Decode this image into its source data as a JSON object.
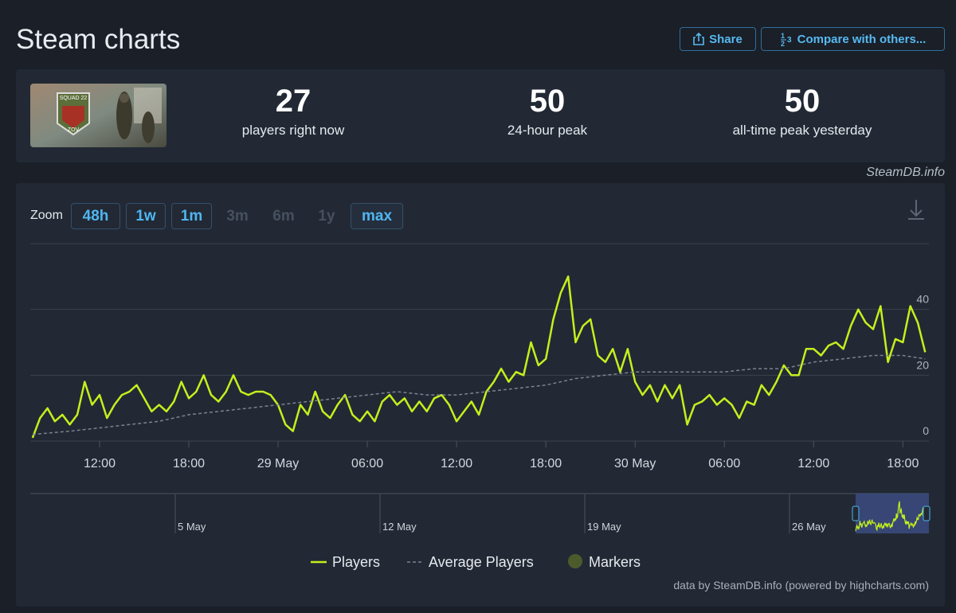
{
  "header": {
    "title": "Steam charts",
    "share": "Share",
    "compare": "Compare with others..."
  },
  "game_image": {
    "text": [
      "SQUAD 22",
      "ZOV"
    ]
  },
  "stats": [
    {
      "value": "27",
      "label": "players right now"
    },
    {
      "value": "50",
      "label": "24-hour peak"
    },
    {
      "value": "50",
      "label": "all-time peak yesterday"
    }
  ],
  "watermark": "SteamDB.info",
  "zoom": {
    "label": "Zoom",
    "buttons": [
      {
        "label": "48h",
        "enabled": true,
        "selected": false
      },
      {
        "label": "1w",
        "enabled": true,
        "selected": false
      },
      {
        "label": "1m",
        "enabled": true,
        "selected": false
      },
      {
        "label": "3m",
        "enabled": false,
        "selected": false
      },
      {
        "label": "6m",
        "enabled": false,
        "selected": false
      },
      {
        "label": "1y",
        "enabled": false,
        "selected": false
      },
      {
        "label": "max",
        "enabled": true,
        "selected": true
      }
    ]
  },
  "chart_data": {
    "type": "line",
    "x": [
      7.5,
      8,
      8.5,
      9,
      9.5,
      10,
      10.5,
      11,
      11.5,
      12,
      12.5,
      13,
      13.5,
      14,
      14.5,
      15,
      15.5,
      16,
      16.5,
      17,
      17.5,
      18,
      18.5,
      19,
      19.5,
      20,
      20.5,
      21,
      21.5,
      22,
      22.5,
      23,
      23.5,
      24,
      24.5,
      25,
      25.5,
      26,
      26.5,
      27,
      27.5,
      28,
      28.5,
      29,
      29.5,
      30,
      30.5,
      31,
      31.5,
      32,
      32.5,
      33,
      33.5,
      34,
      34.5,
      35,
      35.5,
      36,
      36.5,
      37,
      37.5,
      38,
      38.5,
      39,
      39.5,
      40,
      40.5,
      41,
      41.5,
      42,
      42.5,
      43,
      43.5,
      44,
      44.5,
      45,
      45.5,
      46,
      46.5,
      47,
      47.5,
      48,
      48.5,
      49,
      49.5,
      50,
      50.5,
      51,
      51.5,
      52,
      52.5,
      53,
      53.5,
      54,
      54.5,
      55,
      55.5,
      56,
      56.5,
      57,
      57.5,
      58,
      58.5,
      59,
      59.5,
      60,
      60.5,
      61,
      61.5,
      62,
      62.5,
      63,
      63.5,
      64,
      64.5,
      65,
      65.5,
      66,
      66.5,
      67,
      67.5
    ],
    "series": [
      {
        "name": "Players",
        "color": "#c3f01c",
        "dash": false,
        "values": [
          1,
          7,
          10,
          6,
          8,
          5,
          8,
          18,
          11,
          14,
          7,
          11,
          14,
          15,
          17,
          13,
          9,
          11,
          9,
          12,
          18,
          13,
          15,
          20,
          14,
          12,
          15,
          20,
          15,
          14,
          15,
          15,
          14,
          11,
          5,
          3,
          11,
          8,
          15,
          9,
          7,
          11,
          14,
          8,
          6,
          9,
          6,
          12,
          14,
          11,
          13,
          9,
          12,
          9,
          13,
          14,
          11,
          6,
          9,
          12,
          8,
          15,
          18,
          22,
          18,
          21,
          20,
          30,
          23,
          25,
          37,
          45,
          50,
          30,
          35,
          37,
          26,
          24,
          28,
          21,
          28,
          18,
          14,
          17,
          12,
          17,
          13,
          17,
          5,
          11,
          12,
          14,
          11,
          13,
          11,
          7,
          12,
          11,
          17,
          14,
          18,
          23,
          20,
          20,
          28,
          28,
          26,
          29,
          30,
          28,
          35,
          40,
          36,
          34,
          41,
          24,
          31,
          30,
          41,
          36,
          27
        ]
      },
      {
        "name": "Average Players",
        "color": "#7b838f",
        "dash": true,
        "x": [
          7.5,
          10,
          12,
          14,
          16,
          18,
          20,
          22,
          24,
          26,
          28,
          30,
          32,
          34,
          36,
          38,
          40,
          42,
          44,
          46,
          48,
          50,
          52,
          54,
          56,
          58,
          60,
          62,
          64,
          66,
          67.5
        ],
        "values": [
          2,
          3,
          4,
          5,
          6,
          8,
          9,
          10,
          11,
          12,
          13,
          14,
          15,
          14,
          14,
          15,
          16,
          17,
          19,
          20,
          21,
          21,
          21,
          21,
          22,
          22,
          24,
          25,
          26,
          26,
          25
        ]
      }
    ],
    "markers": {
      "name": "Markers",
      "color": "#4d5b2c"
    },
    "xlim": [
      7.45,
      67.75
    ],
    "xticks": [
      {
        "value": 12,
        "label": "12:00"
      },
      {
        "value": 18,
        "label": "18:00"
      },
      {
        "value": 24,
        "label": "29 May"
      },
      {
        "value": 30,
        "label": "06:00"
      },
      {
        "value": 36,
        "label": "12:00"
      },
      {
        "value": 42,
        "label": "18:00"
      },
      {
        "value": 48,
        "label": "30 May"
      },
      {
        "value": 54,
        "label": "06:00"
      },
      {
        "value": 60,
        "label": "12:00"
      },
      {
        "value": 66,
        "label": "18:00"
      }
    ],
    "ylim": [
      0,
      60
    ],
    "yticks": [
      0,
      20,
      40
    ],
    "grid": true,
    "navigator_labels": [
      "5 May",
      "12 May",
      "19 May",
      "26 May"
    ],
    "credit": "data by SteamDB.info (powered by highcharts.com)"
  }
}
